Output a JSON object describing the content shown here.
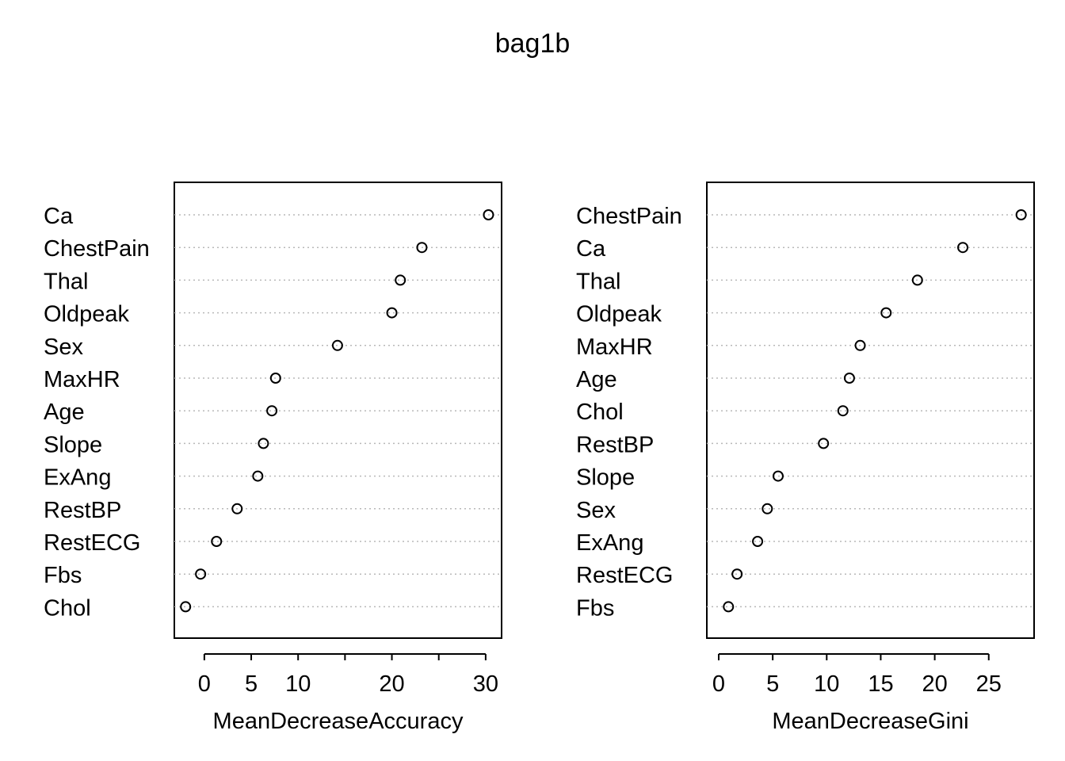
{
  "title": "bag1b",
  "chart_data": [
    {
      "type": "scatter",
      "subtype": "dotchart",
      "xlabel": "MeanDecreaseAccuracy",
      "ylabel": "",
      "xlim": [
        -3.2,
        31.7
      ],
      "xticks": [
        0,
        5,
        10,
        15,
        20,
        25,
        30
      ],
      "xtick_labels": [
        "0",
        "5",
        "10",
        "",
        "20",
        "",
        "30"
      ],
      "grid": "dotted horizontal",
      "categories": [
        "Ca",
        "ChestPain",
        "Thal",
        "Oldpeak",
        "Sex",
        "MaxHR",
        "Age",
        "Slope",
        "ExAng",
        "RestBP",
        "RestECG",
        "Fbs",
        "Chol"
      ],
      "values": [
        30.3,
        23.2,
        20.9,
        20.0,
        14.2,
        7.6,
        7.2,
        6.3,
        5.7,
        3.5,
        1.3,
        -0.4,
        -2.0
      ]
    },
    {
      "type": "scatter",
      "subtype": "dotchart",
      "xlabel": "MeanDecreaseGini",
      "ylabel": "",
      "xlim": [
        -1.1,
        29.2
      ],
      "xticks": [
        0,
        5,
        10,
        15,
        20,
        25
      ],
      "xtick_labels": [
        "0",
        "5",
        "10",
        "15",
        "20",
        "25"
      ],
      "grid": "dotted horizontal",
      "categories": [
        "ChestPain",
        "Ca",
        "Thal",
        "Oldpeak",
        "MaxHR",
        "Age",
        "Chol",
        "RestBP",
        "Slope",
        "Sex",
        "ExAng",
        "RestECG",
        "Fbs"
      ],
      "values": [
        28.0,
        22.6,
        18.4,
        15.5,
        13.1,
        12.1,
        11.5,
        9.7,
        5.5,
        4.5,
        3.6,
        1.7,
        0.9
      ]
    }
  ]
}
